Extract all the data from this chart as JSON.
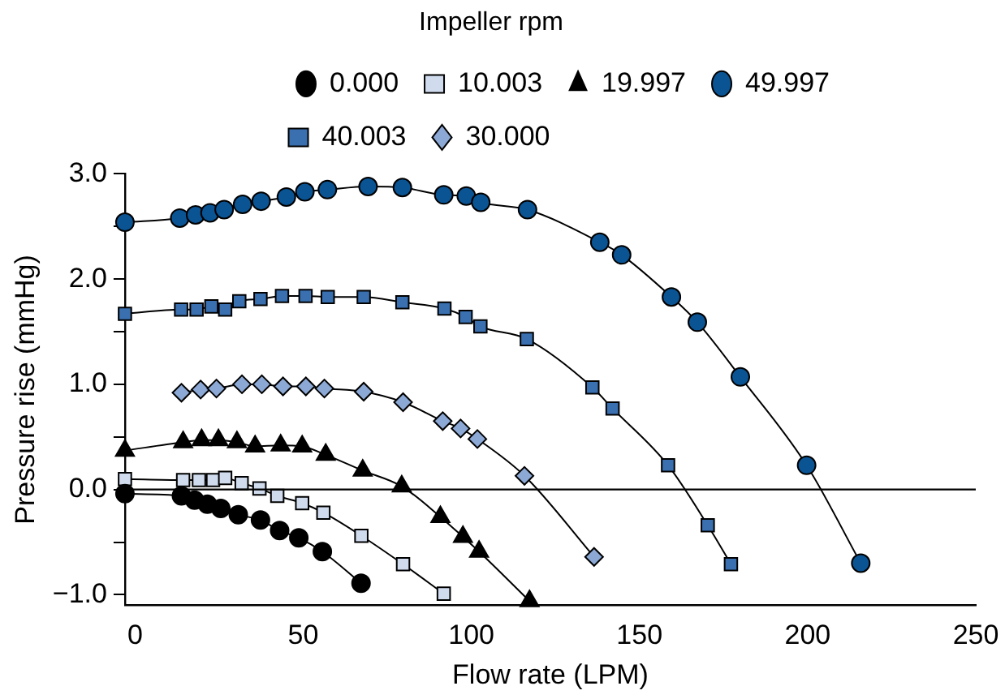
{
  "chart_data": {
    "type": "line",
    "xlabel": "Flow rate (LPM)",
    "ylabel": "Pressure rise (mmHg)",
    "legend_title": "Impeller rpm",
    "legend": "top",
    "line_style": "solid",
    "xlim": [
      -3,
      250
    ],
    "xticks": [
      0,
      50,
      100,
      150,
      200,
      250
    ],
    "ylim": [
      -1.1,
      3.0
    ],
    "yticks": [
      {
        "value": -1,
        "label": "−1.0"
      },
      {
        "value": -0.5,
        "label": null
      },
      {
        "value": 0,
        "label": "0.0"
      },
      {
        "value": 0.5,
        "label": null
      },
      {
        "value": 1,
        "label": "1.0"
      },
      {
        "value": 1.5,
        "label": null
      },
      {
        "value": 2,
        "label": "2.0"
      },
      {
        "value": 2.5,
        "label": null
      },
      {
        "value": 3,
        "label": "3.0"
      }
    ],
    "ref_lines": [
      {
        "axis": "y",
        "value": 0,
        "color": "#000000"
      }
    ],
    "series": [
      {
        "name": "0.000",
        "color": "#000000",
        "marker": "circle",
        "x": [
          -3,
          13.8,
          17.7,
          21.5,
          25.5,
          30.7,
          37.3,
          43,
          48.7,
          55.7,
          67.2
        ],
        "values": [
          -0.04,
          -0.06,
          -0.1,
          -0.14,
          -0.18,
          -0.24,
          -0.29,
          -0.39,
          -0.46,
          -0.59,
          -0.89
        ]
      },
      {
        "name": "10.003",
        "color": "#d0dcee",
        "marker": "square",
        "x": [
          -3,
          14.3,
          19,
          23.2,
          26.8,
          31.7,
          37,
          42.3,
          49.7,
          56,
          67.3,
          79.7,
          91.8
        ],
        "values": [
          0.1,
          0.09,
          0.09,
          0.09,
          0.11,
          0.06,
          0.01,
          -0.06,
          -0.13,
          -0.22,
          -0.44,
          -0.71,
          -0.99
        ]
      },
      {
        "name": "19.997",
        "color": "#000000",
        "marker": "triangle",
        "x": [
          -3,
          14.3,
          19.8,
          24.8,
          30.3,
          35.7,
          43.3,
          49.7,
          56.7,
          67.7,
          79.3,
          90.8,
          97.5,
          102.3,
          117.3
        ],
        "values": [
          0.37,
          0.45,
          0.47,
          0.47,
          0.45,
          0.41,
          0.42,
          0.41,
          0.33,
          0.18,
          0.03,
          -0.26,
          -0.45,
          -0.59,
          -1.06
        ]
      },
      {
        "name": "49.997",
        "color": "#0a5494",
        "marker": "circle",
        "x": [
          -3,
          13.3,
          18,
          22.3,
          26.5,
          32,
          37.5,
          45,
          50.5,
          57.2,
          69.3,
          79.5,
          91.8,
          98.5,
          102.8,
          116.7,
          138.2,
          144.7,
          159.5,
          167.2,
          180,
          199.7,
          215.8
        ],
        "values": [
          2.54,
          2.58,
          2.61,
          2.63,
          2.66,
          2.71,
          2.74,
          2.78,
          2.83,
          2.85,
          2.88,
          2.87,
          2.8,
          2.79,
          2.73,
          2.66,
          2.35,
          2.23,
          1.83,
          1.59,
          1.07,
          0.23,
          -0.7
        ]
      },
      {
        "name": "40.003",
        "color": "#3a70b0",
        "marker": "square",
        "x": [
          -3,
          13.7,
          18.3,
          22.7,
          26.8,
          31,
          37.3,
          43.7,
          50.7,
          57.3,
          68,
          79.5,
          92,
          98.3,
          102.7,
          116.5,
          136,
          142,
          158.5,
          170.3,
          177.2
        ],
        "values": [
          1.67,
          1.71,
          1.71,
          1.74,
          1.71,
          1.79,
          1.81,
          1.84,
          1.84,
          1.83,
          1.83,
          1.78,
          1.72,
          1.64,
          1.55,
          1.43,
          0.97,
          0.77,
          0.23,
          -0.34,
          -0.71
        ]
      },
      {
        "name": "30.000",
        "color": "#8ca8d4",
        "marker": "diamond",
        "x": [
          13.8,
          19.5,
          24.2,
          31.8,
          37.7,
          44,
          50.8,
          56.3,
          68,
          79.7,
          91.5,
          96.8,
          101.8,
          115.8,
          136.5
        ],
        "values": [
          0.92,
          0.95,
          0.96,
          1.0,
          1.0,
          0.98,
          0.98,
          0.96,
          0.93,
          0.83,
          0.65,
          0.58,
          0.48,
          0.13,
          -0.64
        ]
      }
    ]
  }
}
